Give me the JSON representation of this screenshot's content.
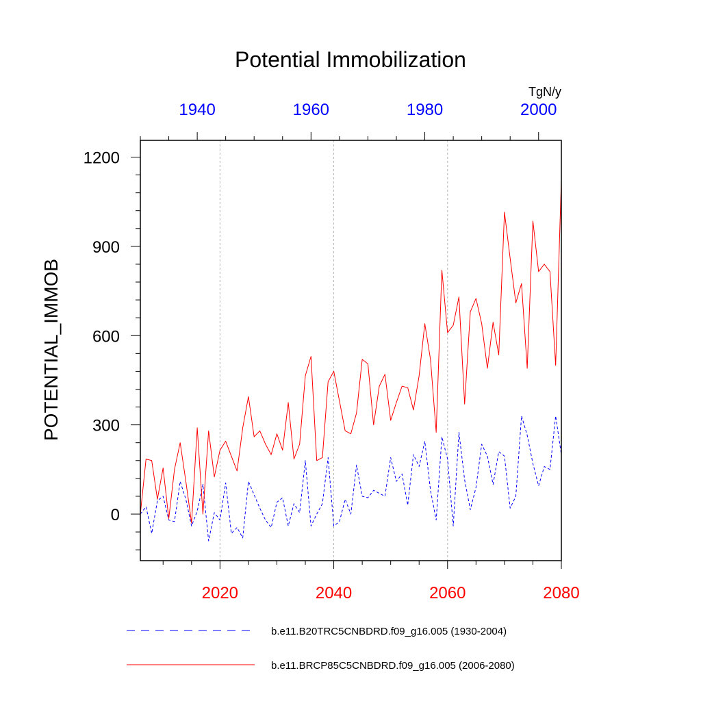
{
  "chart_data": {
    "type": "line",
    "title": "Potential Immobilization",
    "ylabel": "POTENTIAL_IMMOB",
    "units": "TgN/y",
    "ylim": [
      -155,
      1250
    ],
    "yticks": [
      0,
      300,
      600,
      900,
      1200
    ],
    "bottom_axis": {
      "range": [
        2006,
        2080
      ],
      "ticks": [
        2020,
        2040,
        2060,
        2080
      ],
      "color": "#ff0000"
    },
    "top_axis": {
      "range": [
        1930,
        2004
      ],
      "ticks": [
        1940,
        1960,
        1980,
        2000
      ],
      "color": "#0000ff"
    },
    "series": [
      {
        "name": "b.e11.B20TRC5CNBDRD.f09_g16.005 (1930-2004)",
        "color": "#0000ff",
        "style": "dashed",
        "axis": "top",
        "x_start": 1930,
        "values": [
          0,
          25,
          -65,
          45,
          60,
          -20,
          -25,
          110,
          50,
          -40,
          10,
          100,
          -90,
          5,
          -20,
          105,
          -65,
          -45,
          -80,
          110,
          65,
          20,
          -20,
          -45,
          40,
          55,
          -40,
          35,
          5,
          180,
          -40,
          0,
          35,
          190,
          -40,
          -25,
          50,
          0,
          165,
          60,
          55,
          80,
          70,
          60,
          190,
          110,
          135,
          30,
          200,
          160,
          245,
          80,
          -20,
          260,
          185,
          -40,
          275,
          115,
          15,
          90,
          235,
          195,
          100,
          210,
          195,
          20,
          60,
          330,
          265,
          170,
          95,
          160,
          150,
          330,
          200
        ]
      },
      {
        "name": "b.e11.BRCP85C5CNBDRD.f09_g16.005 (2006-2080)",
        "color": "#ff0000",
        "style": "solid",
        "axis": "bottom",
        "x_start": 2006,
        "values": [
          0,
          185,
          180,
          50,
          155,
          -15,
          150,
          240,
          110,
          -30,
          290,
          0,
          280,
          125,
          215,
          245,
          195,
          145,
          290,
          395,
          260,
          280,
          235,
          200,
          270,
          215,
          375,
          185,
          235,
          465,
          530,
          180,
          190,
          445,
          480,
          380,
          280,
          270,
          340,
          520,
          505,
          300,
          430,
          470,
          315,
          375,
          430,
          425,
          350,
          465,
          640,
          520,
          275,
          820,
          610,
          635,
          730,
          370,
          680,
          725,
          640,
          490,
          645,
          535,
          1015,
          860,
          710,
          775,
          490,
          985,
          815,
          840,
          815,
          500,
          1125
        ]
      }
    ],
    "legend": {
      "position": "bottom",
      "entries": [
        "b.e11.B20TRC5CNBDRD.f09_g16.005 (1930-2004)",
        "b.e11.BRCP85C5CNBDRD.f09_g16.005 (2006-2080)"
      ]
    }
  }
}
